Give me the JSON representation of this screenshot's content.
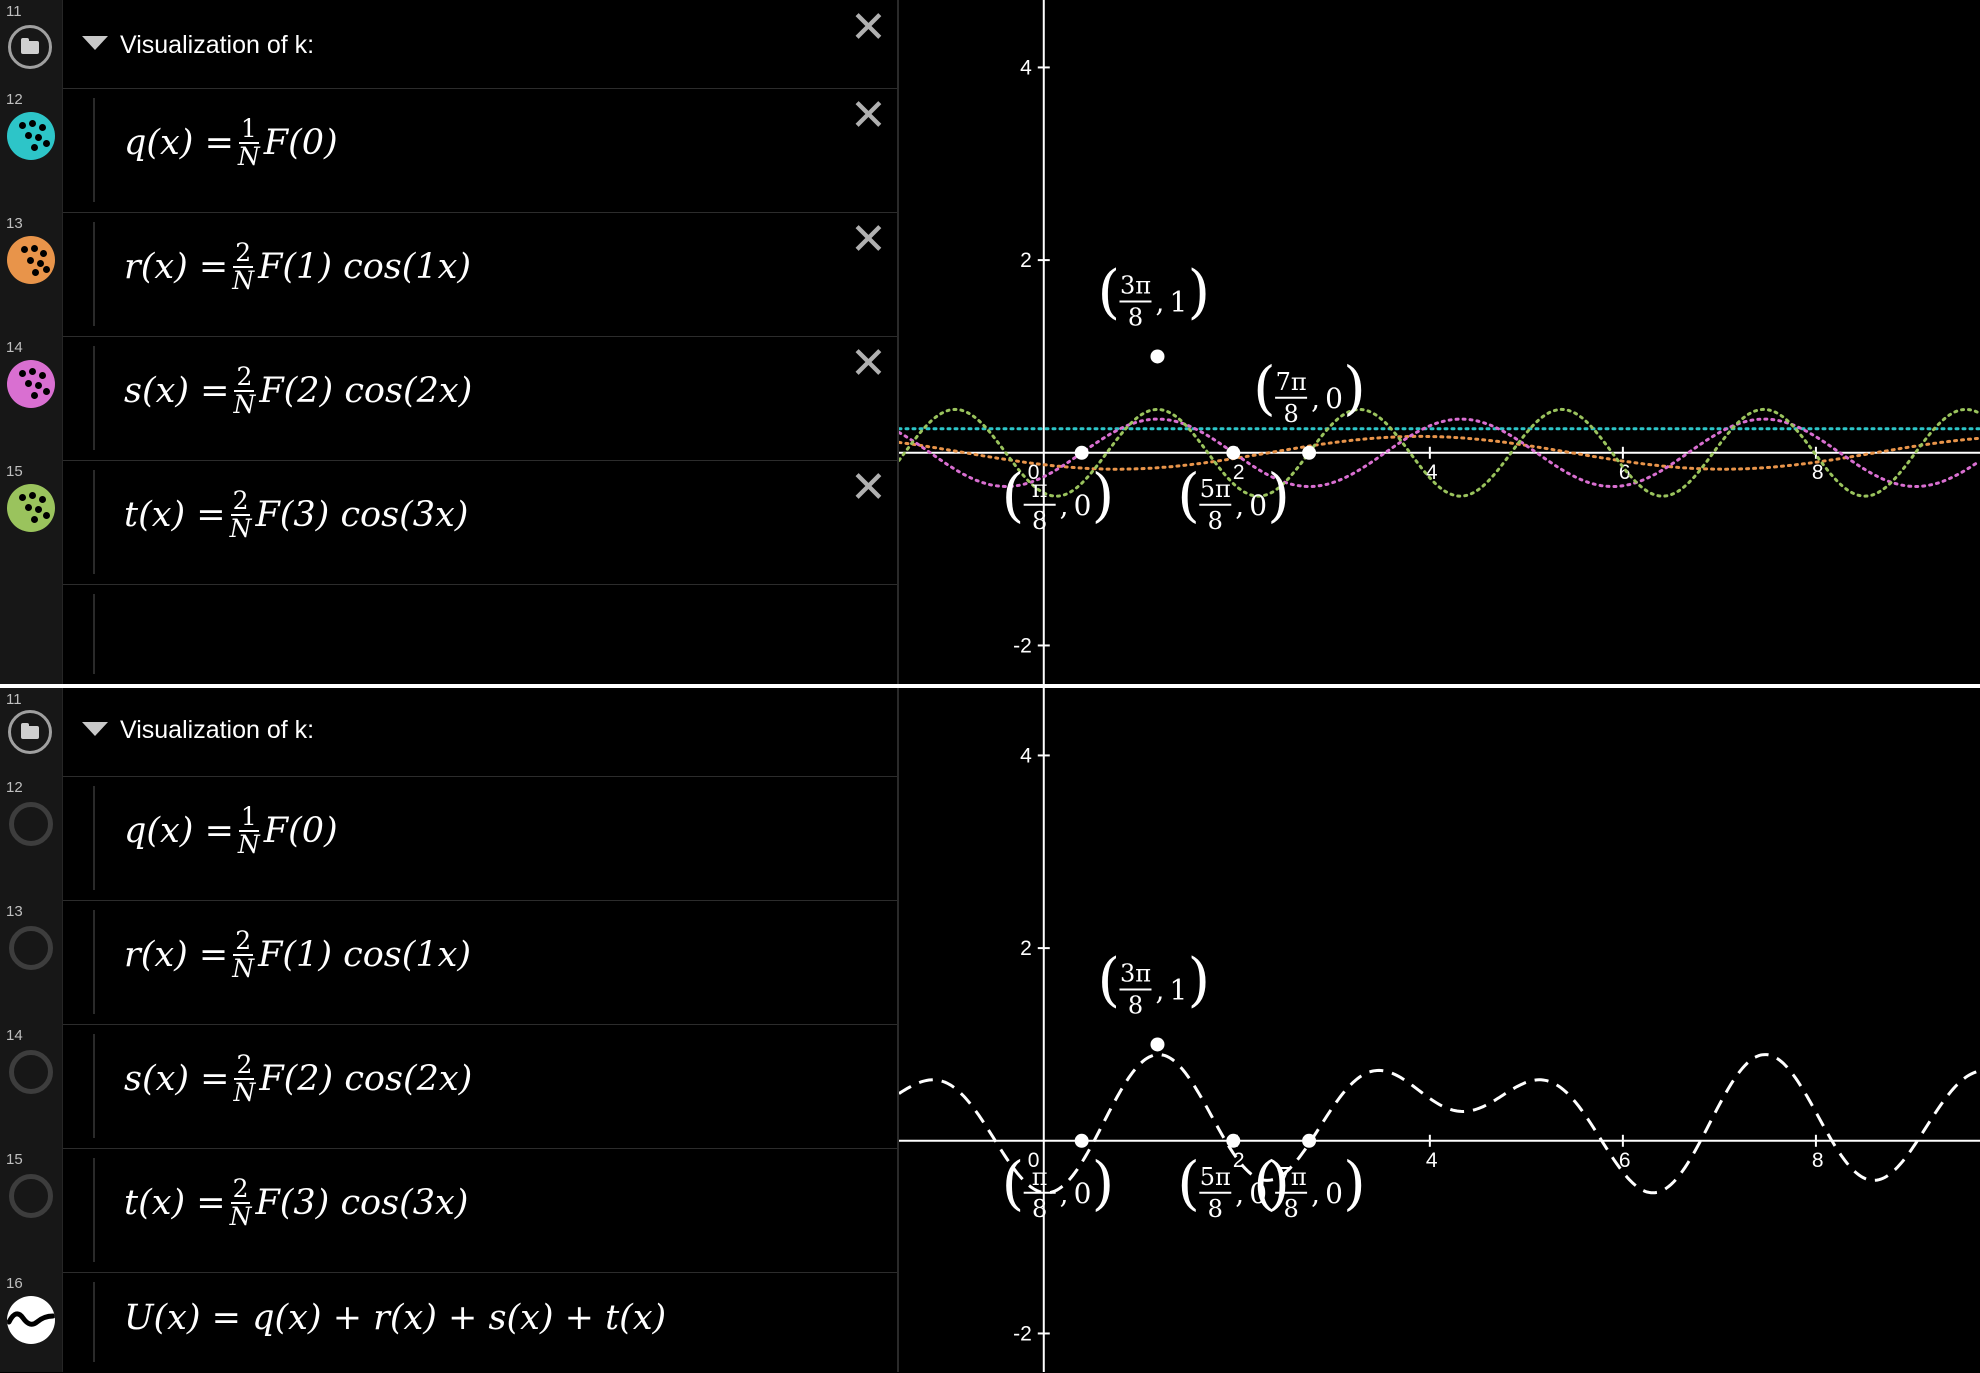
{
  "panels": [
    {
      "folder": {
        "number": "11",
        "title": "Visualization of k:"
      },
      "expressions": [
        {
          "number": "12",
          "color": "#2dc5c8",
          "lhs": "q(x) =",
          "frac": {
            "num": "1",
            "den": "N"
          },
          "rhs": "F(0)",
          "state": "visible"
        },
        {
          "number": "13",
          "color": "#e8944a",
          "lhs": "r(x) =",
          "frac": {
            "num": "2",
            "den": "N"
          },
          "rhs": "F(1) cos(1x)",
          "state": "visible"
        },
        {
          "number": "14",
          "color": "#d96fd1",
          "lhs": "s(x) =",
          "frac": {
            "num": "2",
            "den": "N"
          },
          "rhs": "F(2) cos(2x)",
          "state": "visible"
        },
        {
          "number": "15",
          "color": "#9ac35d",
          "lhs": "t(x) =",
          "frac": {
            "num": "2",
            "den": "N"
          },
          "rhs": "F(3) cos(3x)",
          "state": "visible"
        }
      ],
      "points": [
        {
          "label_num": "π",
          "label_den": "8",
          "label_y": "0",
          "x": 0.3927,
          "y": 0
        },
        {
          "label_num": "3π",
          "label_den": "8",
          "label_y": "1",
          "x": 1.1781,
          "y": 1
        },
        {
          "label_num": "5π",
          "label_den": "8",
          "label_y": "0",
          "x": 1.9635,
          "y": 0
        },
        {
          "label_num": "7π",
          "label_den": "8",
          "label_y": "0",
          "x": 2.7489,
          "y": 0
        }
      ]
    },
    {
      "folder": {
        "number": "11",
        "title": "Visualization of k:"
      },
      "expressions": [
        {
          "number": "12",
          "lhs": "q(x) =",
          "frac": {
            "num": "1",
            "den": "N"
          },
          "rhs": "F(0)",
          "state": "hidden"
        },
        {
          "number": "13",
          "lhs": "r(x) =",
          "frac": {
            "num": "2",
            "den": "N"
          },
          "rhs": "F(1) cos(1x)",
          "state": "hidden"
        },
        {
          "number": "14",
          "lhs": "s(x) =",
          "frac": {
            "num": "2",
            "den": "N"
          },
          "rhs": "F(2) cos(2x)",
          "state": "hidden"
        },
        {
          "number": "15",
          "lhs": "t(x) =",
          "frac": {
            "num": "2",
            "den": "N"
          },
          "rhs": "F(3) cos(3x)",
          "state": "hidden"
        },
        {
          "number": "16",
          "lhs": "U(x) = q(x) + r(x) + s(x) + t(x)",
          "state": "sum"
        }
      ],
      "points": [
        {
          "label_num": "π",
          "label_den": "8",
          "label_y": "0",
          "x": 0.3927,
          "y": 0
        },
        {
          "label_num": "3π",
          "label_den": "8",
          "label_y": "1",
          "x": 1.1781,
          "y": 1
        },
        {
          "label_num": "5π",
          "label_den": "8",
          "label_y": "0",
          "x": 1.9635,
          "y": 0
        },
        {
          "label_num": "7π",
          "label_den": "8",
          "label_y": "0",
          "x": 2.7489,
          "y": 0
        }
      ]
    }
  ],
  "graph": {
    "x_ticks": [
      "0",
      "2",
      "4",
      "6",
      "8"
    ],
    "y_ticks": [
      "4",
      "2",
      "-2"
    ],
    "xlim": [
      -1.5,
      9.7
    ],
    "ylim": [
      -2.4,
      4.7
    ],
    "axis_color": "#ffffff"
  }
}
